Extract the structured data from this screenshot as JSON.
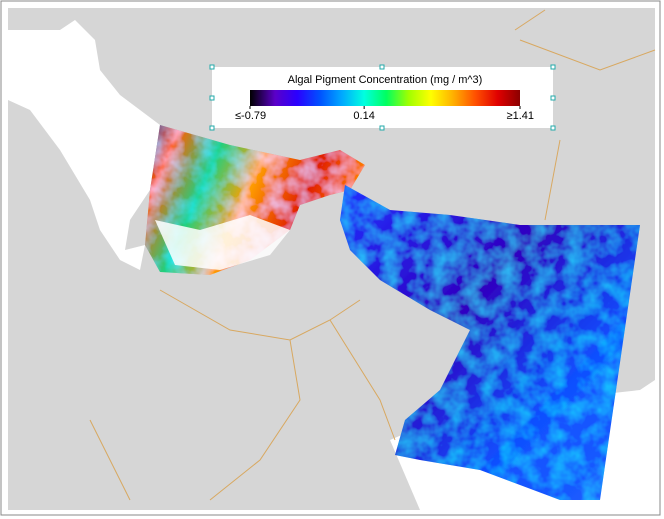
{
  "colorbar": {
    "title": "Algal Pigment Concentration (mg / m^3)",
    "range": [
      -0.79,
      1.41
    ],
    "ticks": [
      {
        "value": -0.79,
        "label": "≤-0.79"
      },
      0.14,
      {
        "value": 1.41,
        "label": "≥1.41"
      }
    ],
    "colors": [
      "#000000",
      "#5b00c8",
      "#2a00ff",
      "#0050ff",
      "#00a8ff",
      "#00ffe0",
      "#00ff60",
      "#a0ff00",
      "#ffff00",
      "#ffb000",
      "#ff5000",
      "#e00000",
      "#8b0000"
    ]
  }
}
